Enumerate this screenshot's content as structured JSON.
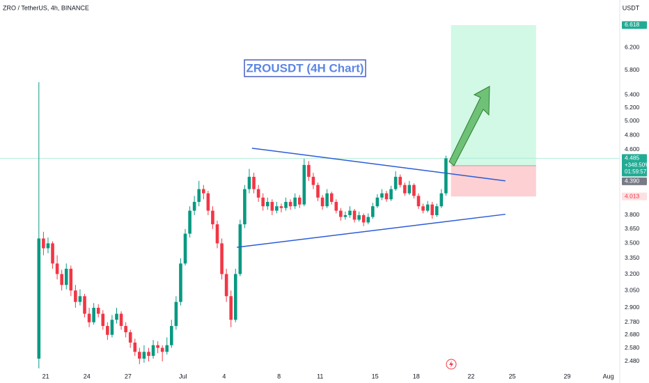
{
  "header": {
    "symbol": "ZRO / TetherUS, 4h, BINANCE",
    "currency": "USDT"
  },
  "chart_data": {
    "type": "candlestick",
    "title": "ZROUSDT (4H Chart)",
    "log_scale": true,
    "grid": false,
    "up_color": "#089981",
    "down_color": "#f23645",
    "ylim": [
      2.425,
      7.12
    ],
    "xlim": [
      -8.5,
      127
    ],
    "yticks": [
      {
        "value": 2.48,
        "label": "2.480"
      },
      {
        "value": 2.58,
        "label": "2.580"
      },
      {
        "value": 2.68,
        "label": "2.680"
      },
      {
        "value": 2.78,
        "label": "2.780"
      },
      {
        "value": 2.9,
        "label": "2.900"
      },
      {
        "value": 3.05,
        "label": "3.050"
      },
      {
        "value": 3.2,
        "label": "3.200"
      },
      {
        "value": 3.35,
        "label": "3.350"
      },
      {
        "value": 3.5,
        "label": "3.500"
      },
      {
        "value": 3.65,
        "label": "3.650"
      },
      {
        "value": 3.8,
        "label": "3.800"
      },
      {
        "value": 4.6,
        "label": "4.600"
      },
      {
        "value": 4.8,
        "label": "4.800"
      },
      {
        "value": 5.0,
        "label": "5.000"
      },
      {
        "value": 5.2,
        "label": "5.200"
      },
      {
        "value": 5.4,
        "label": "5.400"
      },
      {
        "value": 5.8,
        "label": "5.800"
      },
      {
        "value": 6.2,
        "label": "6.200"
      }
    ],
    "xticks": [
      {
        "value": 1.5,
        "label": "21"
      },
      {
        "value": 10.5,
        "label": "24"
      },
      {
        "value": 19.5,
        "label": "27"
      },
      {
        "value": 31.5,
        "label": "Jul"
      },
      {
        "value": 40.5,
        "label": "4"
      },
      {
        "value": 52.5,
        "label": "8"
      },
      {
        "value": 61.5,
        "label": "11"
      },
      {
        "value": 73.5,
        "label": "15"
      },
      {
        "value": 82.5,
        "label": "18"
      },
      {
        "value": 94.5,
        "label": "22"
      },
      {
        "value": 103.5,
        "label": "25"
      },
      {
        "value": 115.5,
        "label": "29"
      },
      {
        "value": 124.5,
        "label": "Aug"
      }
    ],
    "candles": [
      [
        2.5,
        5.6,
        2.43,
        3.55
      ],
      [
        3.55,
        3.62,
        3.38,
        3.45
      ],
      [
        3.45,
        3.56,
        3.4,
        3.5
      ],
      [
        3.5,
        3.52,
        3.25,
        3.3
      ],
      [
        3.3,
        3.38,
        3.15,
        3.2
      ],
      [
        3.2,
        3.24,
        3.05,
        3.1
      ],
      [
        3.1,
        3.3,
        3.06,
        3.25
      ],
      [
        3.25,
        3.28,
        3.0,
        3.05
      ],
      [
        3.05,
        3.1,
        2.9,
        2.95
      ],
      [
        2.95,
        3.06,
        2.92,
        3.0
      ],
      [
        3.0,
        3.02,
        2.82,
        2.85
      ],
      [
        2.85,
        2.9,
        2.74,
        2.78
      ],
      [
        2.78,
        2.94,
        2.76,
        2.9
      ],
      [
        2.9,
        2.93,
        2.82,
        2.85
      ],
      [
        2.85,
        2.88,
        2.72,
        2.75
      ],
      [
        2.75,
        2.78,
        2.64,
        2.68
      ],
      [
        2.68,
        2.84,
        2.66,
        2.8
      ],
      [
        2.8,
        2.9,
        2.77,
        2.85
      ],
      [
        2.85,
        2.87,
        2.72,
        2.75
      ],
      [
        2.75,
        2.78,
        2.66,
        2.7
      ],
      [
        2.7,
        2.72,
        2.58,
        2.62
      ],
      [
        2.62,
        2.65,
        2.52,
        2.55
      ],
      [
        2.55,
        2.58,
        2.46,
        2.5
      ],
      [
        2.5,
        2.6,
        2.47,
        2.55
      ],
      [
        2.55,
        2.58,
        2.48,
        2.52
      ],
      [
        2.52,
        2.64,
        2.5,
        2.6
      ],
      [
        2.6,
        2.63,
        2.54,
        2.58
      ],
      [
        2.58,
        2.6,
        2.48,
        2.55
      ],
      [
        2.55,
        2.66,
        2.53,
        2.6
      ],
      [
        2.6,
        2.8,
        2.58,
        2.75
      ],
      [
        2.75,
        3.0,
        2.72,
        2.95
      ],
      [
        2.95,
        3.35,
        2.92,
        3.3
      ],
      [
        3.3,
        3.65,
        3.28,
        3.6
      ],
      [
        3.6,
        3.9,
        3.56,
        3.85
      ],
      [
        3.85,
        4.02,
        3.8,
        3.95
      ],
      [
        3.95,
        4.2,
        3.9,
        4.1
      ],
      [
        4.1,
        4.15,
        3.98,
        4.05
      ],
      [
        4.05,
        4.08,
        3.8,
        3.85
      ],
      [
        3.85,
        3.9,
        3.65,
        3.7
      ],
      [
        3.7,
        3.74,
        3.45,
        3.5
      ],
      [
        3.5,
        3.55,
        3.15,
        3.2
      ],
      [
        3.2,
        3.25,
        2.95,
        3.0
      ],
      [
        3.0,
        3.05,
        2.74,
        2.8
      ],
      [
        2.8,
        3.25,
        2.78,
        3.2
      ],
      [
        3.2,
        3.75,
        3.18,
        3.7
      ],
      [
        3.7,
        4.15,
        3.66,
        4.1
      ],
      [
        4.1,
        4.35,
        4.05,
        4.25
      ],
      [
        4.25,
        4.3,
        4.05,
        4.1
      ],
      [
        4.1,
        4.15,
        3.95,
        4.0
      ],
      [
        4.0,
        4.05,
        3.85,
        3.9
      ],
      [
        3.9,
        4.0,
        3.86,
        3.95
      ],
      [
        3.95,
        3.98,
        3.8,
        3.85
      ],
      [
        3.85,
        3.95,
        3.82,
        3.9
      ],
      [
        3.9,
        3.93,
        3.83,
        3.88
      ],
      [
        3.88,
        4.0,
        3.85,
        3.95
      ],
      [
        3.95,
        3.98,
        3.86,
        3.9
      ],
      [
        3.9,
        4.05,
        3.87,
        4.0
      ],
      [
        4.0,
        4.03,
        3.88,
        3.92
      ],
      [
        3.92,
        4.48,
        3.9,
        4.4
      ],
      [
        4.4,
        4.45,
        4.2,
        4.25
      ],
      [
        4.25,
        4.3,
        4.1,
        4.15
      ],
      [
        4.15,
        4.18,
        3.96,
        4.0
      ],
      [
        4.0,
        4.03,
        3.86,
        3.9
      ],
      [
        3.9,
        4.1,
        3.88,
        4.05
      ],
      [
        4.05,
        4.07,
        3.92,
        3.95
      ],
      [
        3.95,
        3.98,
        3.82,
        3.85
      ],
      [
        3.85,
        3.88,
        3.74,
        3.78
      ],
      [
        3.78,
        3.84,
        3.75,
        3.8
      ],
      [
        3.8,
        3.9,
        3.77,
        3.85
      ],
      [
        3.85,
        3.87,
        3.72,
        3.75
      ],
      [
        3.75,
        3.84,
        3.73,
        3.8
      ],
      [
        3.8,
        3.82,
        3.68,
        3.72
      ],
      [
        3.72,
        3.82,
        3.7,
        3.78
      ],
      [
        3.78,
        3.94,
        3.76,
        3.9
      ],
      [
        3.9,
        4.04,
        3.88,
        4.0
      ],
      [
        4.0,
        4.1,
        3.97,
        4.05
      ],
      [
        4.05,
        4.08,
        3.95,
        3.98
      ],
      [
        3.98,
        4.14,
        3.96,
        4.1
      ],
      [
        4.1,
        4.32,
        4.08,
        4.25
      ],
      [
        4.25,
        4.28,
        4.12,
        4.15
      ],
      [
        4.15,
        4.18,
        4.02,
        4.05
      ],
      [
        4.05,
        4.2,
        4.03,
        4.15
      ],
      [
        4.15,
        4.17,
        3.99,
        4.02
      ],
      [
        4.02,
        4.05,
        3.87,
        3.9
      ],
      [
        3.9,
        3.93,
        3.82,
        3.85
      ],
      [
        3.85,
        3.96,
        3.83,
        3.92
      ],
      [
        3.92,
        3.95,
        3.76,
        3.8
      ],
      [
        3.8,
        3.93,
        3.78,
        3.9
      ],
      [
        3.9,
        4.1,
        3.88,
        4.05
      ],
      [
        4.05,
        4.52,
        4.02,
        4.485
      ]
    ],
    "trendlines": [
      {
        "x": [
          46.6,
          102.0
        ],
        "y": [
          4.62,
          4.2
        ],
        "color": "#2a5bd7"
      },
      {
        "x": [
          43.3,
          102.0
        ],
        "y": [
          3.46,
          3.81
        ],
        "color": "#2a5bd7"
      }
    ],
    "position": {
      "x": [
        90.1,
        108.7
      ],
      "target": 6.618,
      "entry": 4.39,
      "stop": 4.013,
      "target_label": "6.618",
      "entry_label": "4.390",
      "stop_label": "4.013"
    },
    "last_price": {
      "value": 4.485,
      "label": "4.485",
      "change": "+348.50%",
      "countdown": "01:59:57"
    }
  }
}
